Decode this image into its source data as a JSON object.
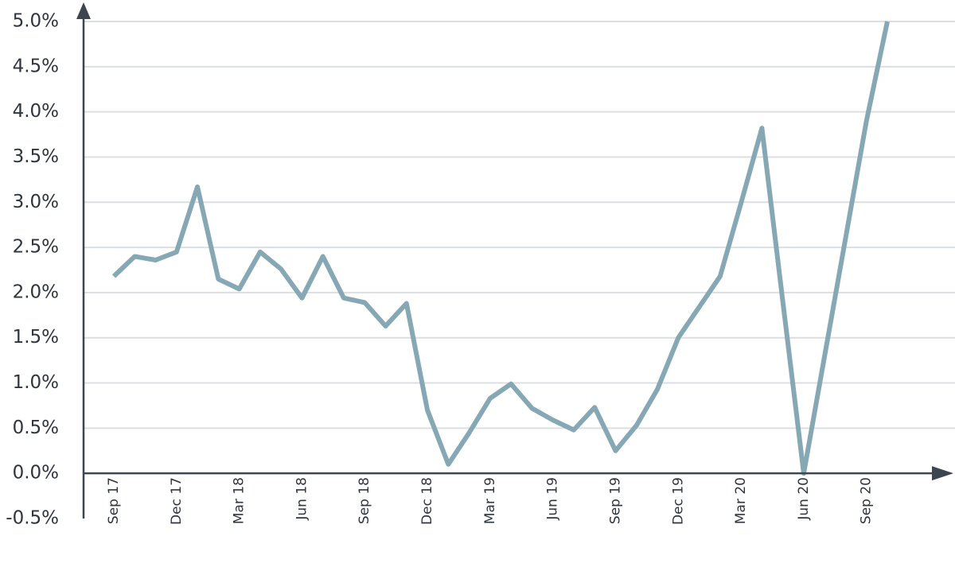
{
  "chart_data": {
    "type": "line",
    "categories": [
      "Sep 17",
      null,
      null,
      "Dec 17",
      null,
      null,
      "Mar 18",
      null,
      null,
      "Jun 18",
      null,
      null,
      "Sep 18",
      null,
      null,
      "Dec 18",
      null,
      null,
      "Mar 19",
      null,
      null,
      "Jun 19",
      null,
      null,
      "Sep 19",
      null,
      null,
      "Dec 19",
      null,
      null,
      "Mar 20",
      null,
      null,
      "Jun 20",
      null,
      null,
      "Sep 20",
      null
    ],
    "series": [
      {
        "color": "#86a8b5",
        "values": [
          2.18,
          2.4,
          2.36,
          2.45,
          3.17,
          2.15,
          2.04,
          2.45,
          2.26,
          1.94,
          2.4,
          1.94,
          1.89,
          1.63,
          1.88,
          0.7,
          0.1,
          0.45,
          0.83,
          0.99,
          0.72,
          0.59,
          0.48,
          0.73,
          0.25,
          0.53,
          0.93,
          1.5,
          1.84,
          2.18,
          2.99,
          3.82,
          1.9,
          0.0,
          1.3,
          2.6,
          3.9,
          5.0
        ]
      }
    ],
    "ylim": [
      -0.5,
      5.0
    ],
    "yticks": [
      {
        "value": -0.5,
        "label": "-0.5%"
      },
      {
        "value": 0,
        "label": "0.0%"
      },
      {
        "value": 0.5,
        "label": "0.5%"
      },
      {
        "value": 1.0,
        "label": "1.0%"
      },
      {
        "value": 1.5,
        "label": "1.5%"
      },
      {
        "value": 2.0,
        "label": "2.0%"
      },
      {
        "value": 2.5,
        "label": "2.5%"
      },
      {
        "value": 3.0,
        "label": "3.0%"
      },
      {
        "value": 3.5,
        "label": "3.5%"
      },
      {
        "value": 4.0,
        "label": "4.0%"
      },
      {
        "value": 4.5,
        "label": "4.5%"
      },
      {
        "value": 5.0,
        "label": "5.0%"
      }
    ],
    "grid": true
  }
}
